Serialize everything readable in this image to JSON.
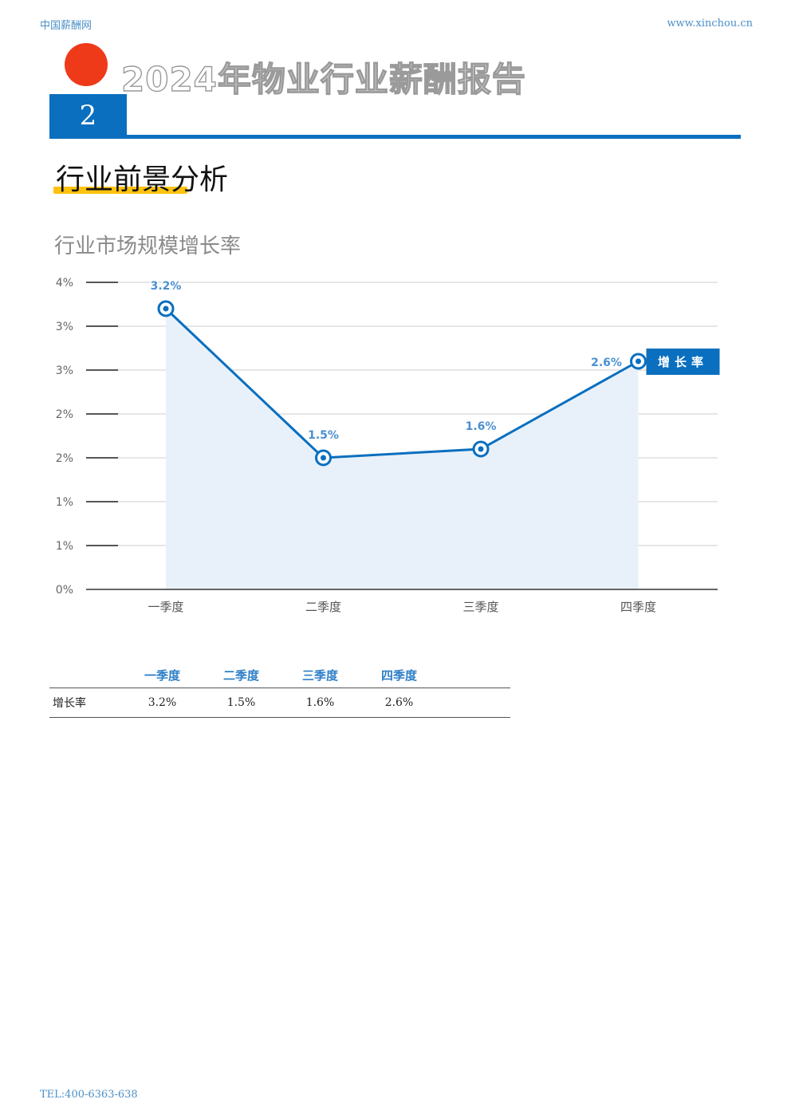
{
  "header": {
    "site_name": "中国薪酬网",
    "url": "www.xinchou.cn"
  },
  "report_title": "2024年物业行业薪酬报告",
  "section": {
    "number": "2",
    "title": "行业前景分析"
  },
  "chart_data": {
    "type": "area",
    "title": "行业市场规模增长率",
    "categories": [
      "一季度",
      "二季度",
      "三季度",
      "四季度"
    ],
    "series": [
      {
        "name": "增长率",
        "values": [
          3.2,
          1.5,
          1.6,
          2.6
        ],
        "labels": [
          "3.2%",
          "1.5%",
          "1.6%",
          "2.6%"
        ]
      }
    ],
    "y_ticks": [
      "0%",
      "1%",
      "1%",
      "2%",
      "2%",
      "3%",
      "3%",
      "4%"
    ],
    "ylim": [
      0,
      3.5
    ],
    "grid": true,
    "legend_position": "right",
    "colors": {
      "line": "#0a6fbf",
      "area": "#e8f1fa",
      "label": "#4a90d0",
      "legend_bg": "#0a6fbf"
    }
  },
  "table": {
    "headers": [
      "",
      "一季度",
      "二季度",
      "三季度",
      "四季度",
      ""
    ],
    "rows": [
      {
        "label": "增长率",
        "values": [
          "3.2%",
          "1.5%",
          "1.6%",
          "2.6%",
          ""
        ]
      }
    ]
  },
  "footer": {
    "phone": "TEL:400-6363-638"
  }
}
